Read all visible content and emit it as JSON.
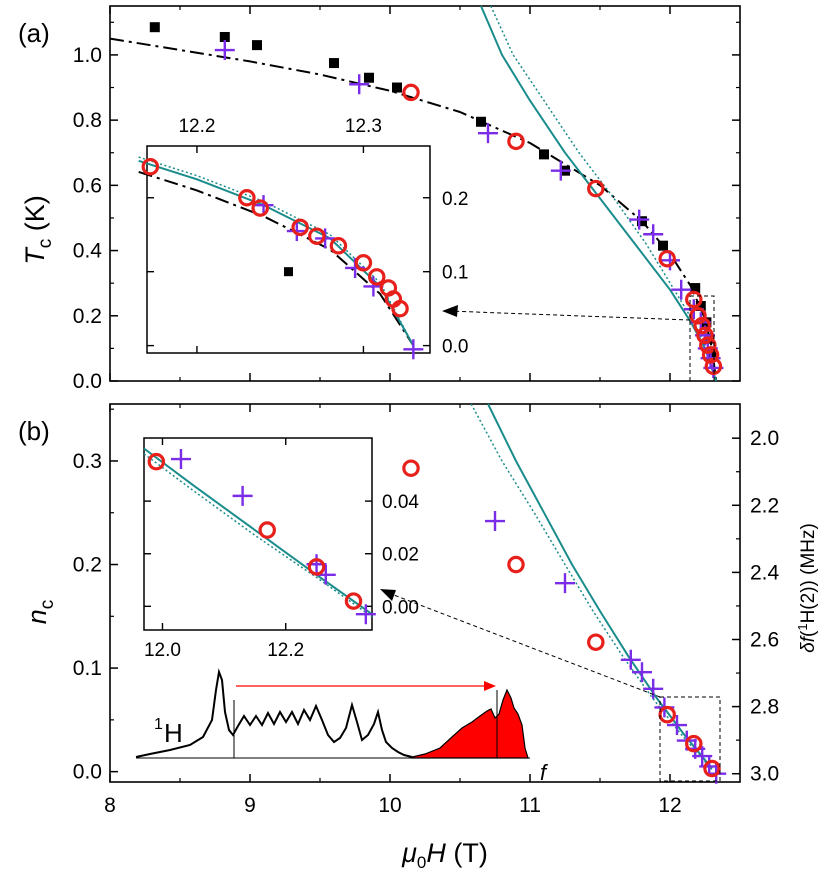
{
  "chart_data": [
    {
      "id": "panel_a",
      "type": "scatter",
      "panel_label": "(a)",
      "xlabel": "μ0H (T)",
      "ylabel": "Tc (K)",
      "xlim": [
        8.0,
        12.5
      ],
      "ylim": [
        0.0,
        1.15
      ],
      "x_ticks": [
        8,
        9,
        10,
        11,
        12
      ],
      "y_ticks": [
        0.0,
        0.2,
        0.4,
        0.6,
        0.8,
        1.0
      ],
      "y_tick_labels": [
        "0.0",
        "0.2",
        "0.4",
        "0.6",
        "0.8",
        "1.0"
      ],
      "series": [
        {
          "name": "squares",
          "marker": "square",
          "color": "#000000",
          "points": [
            [
              8.32,
              1.085
            ],
            [
              8.82,
              1.055
            ],
            [
              9.05,
              1.03
            ],
            [
              9.6,
              0.975
            ],
            [
              9.85,
              0.93
            ],
            [
              10.05,
              0.9
            ],
            [
              10.65,
              0.795
            ],
            [
              11.1,
              0.695
            ],
            [
              11.25,
              0.645
            ],
            [
              11.8,
              0.49
            ],
            [
              11.95,
              0.415
            ],
            [
              12.18,
              0.285
            ],
            [
              12.22,
              0.23
            ],
            [
              12.26,
              0.18
            ],
            [
              12.28,
              0.13
            ],
            [
              12.3,
              0.08
            ]
          ]
        },
        {
          "name": "crosses",
          "marker": "cross",
          "color": "#7B2CE8",
          "points": [
            [
              8.82,
              1.015
            ],
            [
              9.78,
              0.91
            ],
            [
              10.7,
              0.76
            ],
            [
              11.22,
              0.645
            ],
            [
              11.78,
              0.495
            ],
            [
              11.88,
              0.45
            ],
            [
              12.0,
              0.37
            ],
            [
              12.08,
              0.28
            ],
            [
              12.17,
              0.22
            ],
            [
              12.22,
              0.18
            ],
            [
              12.25,
              0.14
            ],
            [
              12.27,
              0.1
            ],
            [
              12.29,
              0.07
            ],
            [
              12.31,
              0.04
            ]
          ]
        },
        {
          "name": "circles",
          "marker": "circle",
          "color": "#E8201C",
          "points": [
            [
              10.15,
              0.885
            ],
            [
              10.9,
              0.735
            ],
            [
              11.47,
              0.59
            ],
            [
              11.98,
              0.375
            ],
            [
              12.17,
              0.25
            ],
            [
              12.2,
              0.2
            ],
            [
              12.23,
              0.17
            ],
            [
              12.25,
              0.14
            ],
            [
              12.27,
              0.11
            ],
            [
              12.29,
              0.08
            ],
            [
              12.31,
              0.045
            ]
          ]
        }
      ],
      "curves": [
        {
          "name": "dash-dot fit",
          "style": "dashdot",
          "color": "#000000",
          "points": [
            [
              8.0,
              1.05
            ],
            [
              8.5,
              1.015
            ],
            [
              9.0,
              0.98
            ],
            [
              9.5,
              0.94
            ],
            [
              10.0,
              0.89
            ],
            [
              10.5,
              0.825
            ],
            [
              11.0,
              0.73
            ],
            [
              11.5,
              0.6
            ],
            [
              11.8,
              0.49
            ],
            [
              12.0,
              0.39
            ],
            [
              12.15,
              0.29
            ],
            [
              12.25,
              0.19
            ],
            [
              12.3,
              0.1
            ],
            [
              12.33,
              0.0
            ]
          ]
        },
        {
          "name": "solid teal",
          "style": "solid",
          "color": "#1A8C8C",
          "points": [
            [
              10.65,
              1.15
            ],
            [
              10.8,
              1.0
            ],
            [
              11.0,
              0.86
            ],
            [
              11.25,
              0.7
            ],
            [
              11.5,
              0.56
            ],
            [
              11.75,
              0.42
            ],
            [
              12.0,
              0.28
            ],
            [
              12.15,
              0.18
            ],
            [
              12.25,
              0.1
            ],
            [
              12.33,
              0.0
            ]
          ]
        },
        {
          "name": "dotted teal",
          "style": "dotted",
          "color": "#1A8C8C",
          "points": [
            [
              10.72,
              1.15
            ],
            [
              10.88,
              1.0
            ],
            [
              11.1,
              0.86
            ],
            [
              11.35,
              0.7
            ],
            [
              11.6,
              0.56
            ],
            [
              11.83,
              0.42
            ],
            [
              12.03,
              0.28
            ],
            [
              12.17,
              0.18
            ],
            [
              12.26,
              0.1
            ],
            [
              12.33,
              0.0
            ]
          ]
        }
      ],
      "inset": {
        "xlim": [
          12.17,
          12.34
        ],
        "ylim": [
          -0.01,
          0.27
        ],
        "x_ticks": [
          12.2,
          12.3
        ],
        "x_tick_position": "top",
        "y_ticks": [
          0.0,
          0.1,
          0.2
        ],
        "y_tick_labels": [
          "0.0",
          "0.1",
          "0.2"
        ],
        "y_tick_position": "right",
        "squares": [
          [
            12.255,
            0.1
          ]
        ],
        "crosses": [
          [
            12.24,
            0.19
          ],
          [
            12.26,
            0.155
          ],
          [
            12.277,
            0.145
          ],
          [
            12.295,
            0.105
          ],
          [
            12.306,
            0.08
          ],
          [
            12.33,
            -0.005
          ]
        ],
        "circles": [
          [
            12.172,
            0.242
          ],
          [
            12.23,
            0.2
          ],
          [
            12.238,
            0.186
          ],
          [
            12.262,
            0.16
          ],
          [
            12.272,
            0.148
          ],
          [
            12.285,
            0.135
          ],
          [
            12.3,
            0.112
          ],
          [
            12.308,
            0.093
          ],
          [
            12.315,
            0.078
          ],
          [
            12.318,
            0.063
          ],
          [
            12.322,
            0.05
          ]
        ],
        "curve_dashdot": [
          [
            12.165,
            0.235
          ],
          [
            12.2,
            0.21
          ],
          [
            12.24,
            0.175
          ],
          [
            12.28,
            0.13
          ],
          [
            12.31,
            0.07
          ],
          [
            12.33,
            0.0
          ]
        ],
        "curve_solid": [
          [
            12.165,
            0.25
          ],
          [
            12.2,
            0.225
          ],
          [
            12.24,
            0.19
          ],
          [
            12.28,
            0.145
          ],
          [
            12.31,
            0.08
          ],
          [
            12.33,
            0.0
          ]
        ],
        "curve_dotted": [
          [
            12.165,
            0.255
          ],
          [
            12.2,
            0.23
          ],
          [
            12.24,
            0.195
          ],
          [
            12.28,
            0.15
          ],
          [
            12.31,
            0.085
          ],
          [
            12.33,
            0.0
          ]
        ]
      }
    },
    {
      "id": "panel_b",
      "type": "scatter",
      "panel_label": "(b)",
      "xlabel": "μ0H (T)",
      "ylabel": "nc",
      "ylabel_right": "δf(1H(2)) (MHz)",
      "xlim": [
        8.0,
        12.5
      ],
      "ylim": [
        -0.01,
        0.355
      ],
      "x_ticks": [
        8,
        9,
        10,
        11,
        12
      ],
      "y_ticks": [
        0.0,
        0.1,
        0.2,
        0.3
      ],
      "y_tick_labels": [
        "0.0",
        "0.1",
        "0.2",
        "0.3"
      ],
      "y_right_ticks": [
        2.0,
        2.2,
        2.4,
        2.6,
        2.8,
        3.0
      ],
      "y_right_tick_labels": [
        "2.0",
        "2.2",
        "2.4",
        "2.6",
        "2.8",
        "3.0"
      ],
      "y_right_mapping": {
        "at_2.0": 0.322,
        "at_3.0": -0.002
      },
      "series": [
        {
          "name": "crosses",
          "marker": "cross",
          "color": "#7B2CE8",
          "points": [
            [
              10.75,
              0.242
            ],
            [
              11.25,
              0.182
            ],
            [
              11.72,
              0.108
            ],
            [
              11.8,
              0.096
            ],
            [
              11.88,
              0.08
            ],
            [
              11.96,
              0.062
            ],
            [
              12.05,
              0.045
            ],
            [
              12.12,
              0.03
            ],
            [
              12.18,
              0.022
            ],
            [
              12.23,
              0.015
            ],
            [
              12.28,
              0.005
            ],
            [
              12.33,
              -0.002
            ]
          ]
        },
        {
          "name": "circles",
          "marker": "circle",
          "color": "#E8201C",
          "points": [
            [
              10.15,
              0.293
            ],
            [
              10.9,
              0.2
            ],
            [
              11.47,
              0.125
            ],
            [
              11.98,
              0.055
            ],
            [
              12.17,
              0.027
            ],
            [
              12.3,
              0.003
            ]
          ]
        }
      ],
      "curves": [
        {
          "name": "solid teal",
          "style": "solid",
          "color": "#1A8C8C",
          "points": [
            [
              10.7,
              0.355
            ],
            [
              10.9,
              0.3
            ],
            [
              11.1,
              0.25
            ],
            [
              11.3,
              0.2
            ],
            [
              11.5,
              0.155
            ],
            [
              11.7,
              0.112
            ],
            [
              11.9,
              0.072
            ],
            [
              12.1,
              0.036
            ],
            [
              12.3,
              0.003
            ]
          ]
        },
        {
          "name": "dotted teal",
          "style": "dotted",
          "color": "#1A8C8C",
          "points": [
            [
              10.58,
              0.355
            ],
            [
              10.8,
              0.3
            ],
            [
              11.03,
              0.25
            ],
            [
              11.25,
              0.2
            ],
            [
              11.45,
              0.155
            ],
            [
              11.66,
              0.112
            ],
            [
              11.87,
              0.072
            ],
            [
              12.08,
              0.036
            ],
            [
              12.3,
              0.002
            ]
          ]
        }
      ],
      "inset": {
        "xlim": [
          11.97,
          12.34
        ],
        "ylim": [
          -0.009,
          0.064
        ],
        "x_ticks": [
          12.0,
          12.2
        ],
        "x_tick_labels": [
          "12.0",
          "12.2"
        ],
        "y_ticks": [
          0.0,
          0.02,
          0.04
        ],
        "y_tick_labels": [
          "0.00",
          "0.02",
          "0.04"
        ],
        "y_tick_position": "right",
        "crosses": [
          [
            12.03,
            0.056
          ],
          [
            12.13,
            0.042
          ],
          [
            12.25,
            0.016
          ],
          [
            12.265,
            0.012
          ],
          [
            12.33,
            -0.003
          ]
        ],
        "circles": [
          [
            11.99,
            0.055
          ],
          [
            12.17,
            0.029
          ],
          [
            12.25,
            0.015
          ],
          [
            12.31,
            0.002
          ]
        ],
        "curve_solid": [
          [
            11.97,
            0.06
          ],
          [
            12.05,
            0.046
          ],
          [
            12.15,
            0.029
          ],
          [
            12.25,
            0.012
          ],
          [
            12.34,
            -0.003
          ]
        ],
        "curve_dotted": [
          [
            11.97,
            0.058
          ],
          [
            12.05,
            0.044
          ],
          [
            12.15,
            0.027
          ],
          [
            12.25,
            0.011
          ],
          [
            12.34,
            -0.004
          ]
        ]
      },
      "spectrum_inset": {
        "label_nucleus": "1H",
        "label_freq": "f"
      }
    }
  ]
}
